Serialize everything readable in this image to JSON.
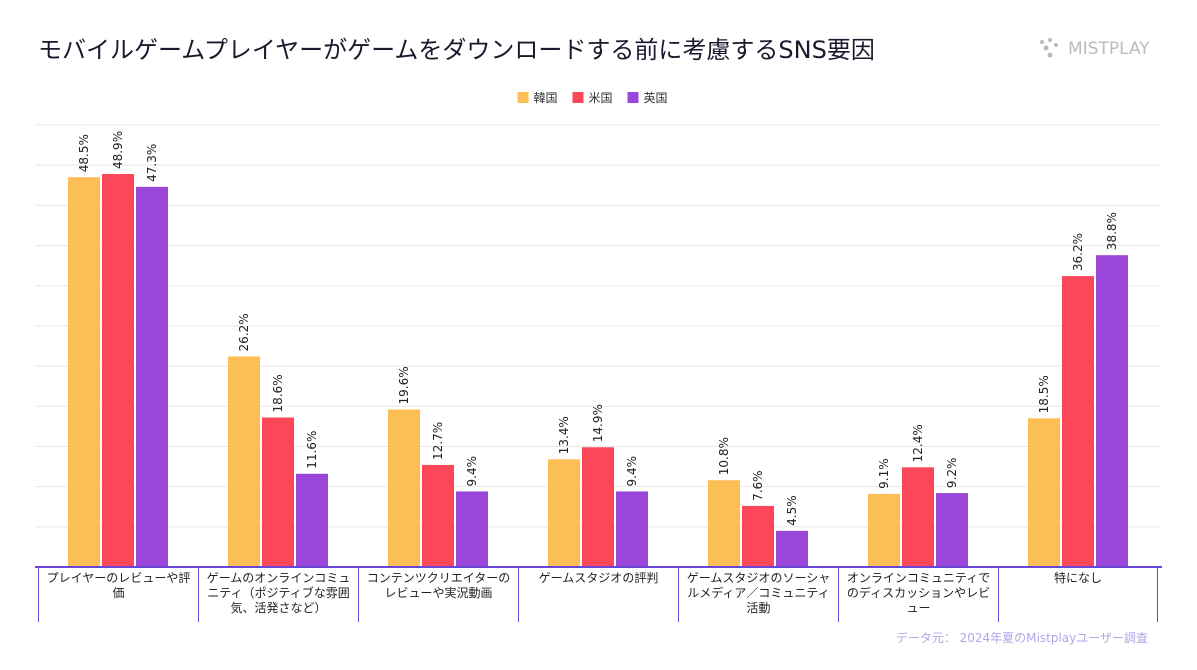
{
  "chart_data": {
    "type": "bar",
    "title": "モバイルゲームプレイヤーがゲームをダウンロードする前に考慮するSNS要因",
    "brand": "MISTPLAY",
    "source": "データ元： 2024年夏のMistplayユーザー調査",
    "categories": [
      "プレイヤーのレビューや評価",
      "ゲームのオンラインコミュニティ（ポジティブな雰囲気、活発さなど）",
      "コンテンツクリエイターのレビューや実況動画",
      "ゲームスタジオの評判",
      "ゲームスタジオのソーシャルメディア／コミュニティ活動",
      "オンラインコミュニティでのディスカッションやレビュー",
      "特になし"
    ],
    "series": [
      {
        "name": "韓国",
        "color": "#fdbf55",
        "values": [
          48.5,
          26.2,
          19.6,
          13.4,
          10.8,
          9.1,
          18.5
        ],
        "value_labels": [
          "48.5%",
          "26.2%",
          "19.6%",
          "13.4%",
          "10.8%",
          "9.1%",
          "18.5%"
        ]
      },
      {
        "name": "米国",
        "color": "#fb4757",
        "values": [
          48.9,
          18.6,
          12.7,
          14.9,
          7.6,
          12.4,
          36.2
        ],
        "value_labels": [
          "48.9%",
          "18.6%",
          "12.7%",
          "14.9%",
          "7.6%",
          "12.4%",
          "36.2%"
        ]
      },
      {
        "name": "英国",
        "color": "#9b46da",
        "values": [
          47.3,
          11.6,
          9.4,
          9.4,
          4.5,
          9.2,
          38.8
        ],
        "value_labels": [
          "47.3%",
          "11.6%",
          "9.4%",
          "9.4%",
          "4.5%",
          "9.2%",
          "38.8%"
        ]
      }
    ],
    "ylim": [
      0,
      55
    ],
    "yticks": [
      0,
      5,
      10,
      15,
      20,
      25,
      30,
      35,
      40,
      45,
      50,
      55
    ],
    "grid": true
  }
}
